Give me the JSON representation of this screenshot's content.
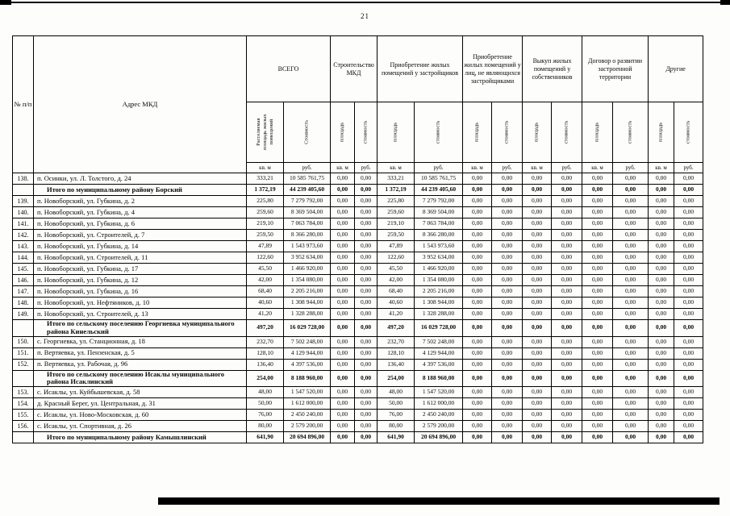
{
  "page": {
    "number": "21"
  },
  "table": {
    "col_num": "№ п/п",
    "col_address": "Адрес МКД",
    "groups": [
      {
        "label": "ВСЕГО",
        "sub": [
          "Расселяемая площадь жилых помещений",
          "Стоимость"
        ]
      },
      {
        "label": "Строительство МКД",
        "sub": [
          "площадь",
          "стоимость"
        ]
      },
      {
        "label": "Приобретение жилых помещений у застройщиков",
        "sub": [
          "площадь",
          "стоимость"
        ]
      },
      {
        "label": "Приобретение жилых помещений у лиц, не являющихся застройщиками",
        "sub": [
          "площадь",
          "стоимость"
        ]
      },
      {
        "label": "Выкуп жилых помещений у собственников",
        "sub": [
          "площадь",
          "стоимость"
        ]
      },
      {
        "label": "Договор о развитии застроенной территории",
        "sub": [
          "площадь",
          "стоимость"
        ]
      },
      {
        "label": "Другие",
        "sub": [
          "площадь",
          "стоимость"
        ]
      }
    ],
    "units": [
      "кв. м",
      "руб.",
      "кв. м",
      "руб.",
      "кв. м",
      "руб.",
      "кв. м",
      "руб.",
      "кв. м",
      "руб.",
      "кв. м",
      "руб.",
      "кв. м",
      "руб."
    ],
    "rows": [
      {
        "num": "138.",
        "address": "п. Осинки, ул. Л. Толстого, д. 24",
        "bold": false,
        "values": [
          "333,21",
          "10 585 761,75",
          "0,00",
          "0,00",
          "333,21",
          "10 585 761,75",
          "0,00",
          "0,00",
          "0,00",
          "0,00",
          "0,00",
          "0,00",
          "0,00",
          "0,00"
        ]
      },
      {
        "num": "",
        "address": "Итого по муниципальному району Борский",
        "bold": true,
        "values": [
          "1 372,19",
          "44 239 405,60",
          "0,00",
          "0,00",
          "1 372,19",
          "44 239 405,60",
          "0,00",
          "0,00",
          "0,00",
          "0,00",
          "0,00",
          "0,00",
          "0,00",
          "0,00"
        ]
      },
      {
        "num": "139.",
        "address": "п. Новоборский, ул. Губкина, д. 2",
        "bold": false,
        "values": [
          "225,80",
          "7 279 792,00",
          "0,00",
          "0,00",
          "225,80",
          "7 279 792,00",
          "0,00",
          "0,00",
          "0,00",
          "0,00",
          "0,00",
          "0,00",
          "0,00",
          "0,00"
        ]
      },
      {
        "num": "140.",
        "address": "п. Новоборский, ул. Губкина, д. 4",
        "bold": false,
        "values": [
          "259,60",
          "8 369 504,00",
          "0,00",
          "0,00",
          "259,60",
          "8 369 504,00",
          "0,00",
          "0,00",
          "0,00",
          "0,00",
          "0,00",
          "0,00",
          "0,00",
          "0,00"
        ]
      },
      {
        "num": "141.",
        "address": "п. Новоборский, ул. Губкина, д. 6",
        "bold": false,
        "values": [
          "219,10",
          "7 063 784,00",
          "0,00",
          "0,00",
          "219,10",
          "7 063 784,00",
          "0,00",
          "0,00",
          "0,00",
          "0,00",
          "0,00",
          "0,00",
          "0,00",
          "0,00"
        ]
      },
      {
        "num": "142.",
        "address": "п. Новоборский, ул. Строителей, д. 7",
        "bold": false,
        "values": [
          "259,50",
          "8 366 280,00",
          "0,00",
          "0,00",
          "259,50",
          "8 366 280,00",
          "0,00",
          "0,00",
          "0,00",
          "0,00",
          "0,00",
          "0,00",
          "0,00",
          "0,00"
        ]
      },
      {
        "num": "143.",
        "address": "п. Новоборский, ул. Губкина, д. 14",
        "bold": false,
        "values": [
          "47,89",
          "1 543 973,60",
          "0,00",
          "0,00",
          "47,89",
          "1 543 973,60",
          "0,00",
          "0,00",
          "0,00",
          "0,00",
          "0,00",
          "0,00",
          "0,00",
          "0,00"
        ]
      },
      {
        "num": "144.",
        "address": "п. Новоборский, ул. Строителей, д. 11",
        "bold": false,
        "values": [
          "122,60",
          "3 952 634,00",
          "0,00",
          "0,00",
          "122,60",
          "3 952 634,00",
          "0,00",
          "0,00",
          "0,00",
          "0,00",
          "0,00",
          "0,00",
          "0,00",
          "0,00"
        ]
      },
      {
        "num": "145.",
        "address": "п. Новоборский, ул. Губкина, д. 17",
        "bold": false,
        "values": [
          "45,50",
          "1 466 920,00",
          "0,00",
          "0,00",
          "45,50",
          "1 466 920,00",
          "0,00",
          "0,00",
          "0,00",
          "0,00",
          "0,00",
          "0,00",
          "0,00",
          "0,00"
        ]
      },
      {
        "num": "146.",
        "address": "п. Новоборский, ул. Губкина, д. 12",
        "bold": false,
        "values": [
          "42,00",
          "1 354 080,00",
          "0,00",
          "0,00",
          "42,00",
          "1 354 080,00",
          "0,00",
          "0,00",
          "0,00",
          "0,00",
          "0,00",
          "0,00",
          "0,00",
          "0,00"
        ]
      },
      {
        "num": "147.",
        "address": "п. Новоборский, ул. Губкина, д. 16",
        "bold": false,
        "values": [
          "68,40",
          "2 205 216,00",
          "0,00",
          "0,00",
          "68,40",
          "2 205 216,00",
          "0,00",
          "0,00",
          "0,00",
          "0,00",
          "0,00",
          "0,00",
          "0,00",
          "0,00"
        ]
      },
      {
        "num": "148.",
        "address": "п. Новоборский, ул. Нефтяников, д. 10",
        "bold": false,
        "values": [
          "40,60",
          "1 308 944,00",
          "0,00",
          "0,00",
          "40,60",
          "1 308 944,00",
          "0,00",
          "0,00",
          "0,00",
          "0,00",
          "0,00",
          "0,00",
          "0,00",
          "0,00"
        ]
      },
      {
        "num": "149.",
        "address": "п. Новоборский, ул. Строителей, д. 13",
        "bold": false,
        "values": [
          "41,20",
          "1 328 288,00",
          "0,00",
          "0,00",
          "41,20",
          "1 328 288,00",
          "0,00",
          "0,00",
          "0,00",
          "0,00",
          "0,00",
          "0,00",
          "0,00",
          "0,00"
        ]
      },
      {
        "num": "",
        "address": "Итого по сельскому поселению Георгиевка муниципального района Кинельский",
        "bold": true,
        "values": [
          "497,20",
          "16 029 728,00",
          "0,00",
          "0,00",
          "497,20",
          "16 029 728,00",
          "0,00",
          "0,00",
          "0,00",
          "0,00",
          "0,00",
          "0,00",
          "0,00",
          "0,00"
        ]
      },
      {
        "num": "150.",
        "address": "с. Георгиевка, ул. Станционная, д. 18",
        "bold": false,
        "values": [
          "232,70",
          "7 502 248,00",
          "0,00",
          "0,00",
          "232,70",
          "7 502 248,00",
          "0,00",
          "0,00",
          "0,00",
          "0,00",
          "0,00",
          "0,00",
          "0,00",
          "0,00"
        ]
      },
      {
        "num": "151.",
        "address": "п. Вертяевка, ул. Пензенская, д. 5",
        "bold": false,
        "values": [
          "128,10",
          "4 129 944,00",
          "0,00",
          "0,00",
          "128,10",
          "4 129 944,00",
          "0,00",
          "0,00",
          "0,00",
          "0,00",
          "0,00",
          "0,00",
          "0,00",
          "0,00"
        ]
      },
      {
        "num": "152.",
        "address": "п. Вертяевка, ул. Рабочая, д. 96",
        "bold": false,
        "values": [
          "136,40",
          "4 397 536,00",
          "0,00",
          "0,00",
          "136,40",
          "4 397 536,00",
          "0,00",
          "0,00",
          "0,00",
          "0,00",
          "0,00",
          "0,00",
          "0,00",
          "0,00"
        ]
      },
      {
        "num": "",
        "address": "Итого по сельскому поселению Исаклы муниципального района Исаклинский",
        "bold": true,
        "values": [
          "254,00",
          "8 188 960,00",
          "0,00",
          "0,00",
          "254,00",
          "8 188 960,00",
          "0,00",
          "0,00",
          "0,00",
          "0,00",
          "0,00",
          "0,00",
          "0,00",
          "0,00"
        ]
      },
      {
        "num": "153.",
        "address": "с. Исаклы, ул. Куйбышевская, д. 58",
        "bold": false,
        "values": [
          "48,00",
          "1 547 520,00",
          "0,00",
          "0,00",
          "48,00",
          "1 547 520,00",
          "0,00",
          "0,00",
          "0,00",
          "0,00",
          "0,00",
          "0,00",
          "0,00",
          "0,00"
        ]
      },
      {
        "num": "154.",
        "address": "д. Красный Берег, ул. Центральная, д. 31",
        "bold": false,
        "values": [
          "50,00",
          "1 612 000,00",
          "0,00",
          "0,00",
          "50,00",
          "1 612 000,00",
          "0,00",
          "0,00",
          "0,00",
          "0,00",
          "0,00",
          "0,00",
          "0,00",
          "0,00"
        ]
      },
      {
        "num": "155.",
        "address": "с. Исаклы, ул. Ново-Московская, д. 60",
        "bold": false,
        "values": [
          "76,00",
          "2 450 240,00",
          "0,00",
          "0,00",
          "76,00",
          "2 450 240,00",
          "0,00",
          "0,00",
          "0,00",
          "0,00",
          "0,00",
          "0,00",
          "0,00",
          "0,00"
        ]
      },
      {
        "num": "156.",
        "address": "с. Исаклы, ул. Спортивная, д. 26",
        "bold": false,
        "values": [
          "80,00",
          "2 579 200,00",
          "0,00",
          "0,00",
          "80,00",
          "2 579 200,00",
          "0,00",
          "0,00",
          "0,00",
          "0,00",
          "0,00",
          "0,00",
          "0,00",
          "0,00"
        ]
      },
      {
        "num": "",
        "address": "Итого по муниципальному району Камышлинский",
        "bold": true,
        "values": [
          "641,90",
          "20 694 896,00",
          "0,00",
          "0,00",
          "641,90",
          "20 694 896,00",
          "0,00",
          "0,00",
          "0,00",
          "0,00",
          "0,00",
          "0,00",
          "0,00",
          "0,00"
        ]
      }
    ]
  }
}
